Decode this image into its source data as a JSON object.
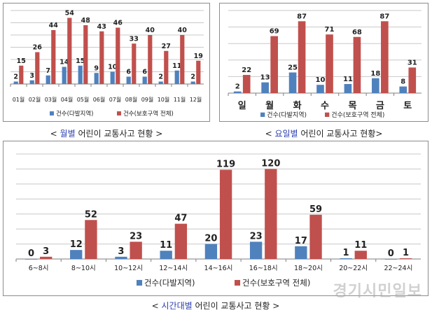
{
  "colors": {
    "blue": "#4f81bd",
    "red": "#c0504d",
    "blue_text": "#2b3fb0"
  },
  "legend": {
    "blue": "건수(다발지역)",
    "red": "건수(보호구역 전체)"
  },
  "captions": {
    "monthly": {
      "pre": "< ",
      "hl": "월별",
      "post": " 어린이 교통사고 현황 >"
    },
    "weekday": {
      "pre": "< ",
      "hl": "요일별",
      "post": " 어린이 교통사고 현황>"
    },
    "hourly": {
      "pre": "< ",
      "hl": "시간대별",
      "post": " 어린이 교통사고 현황 >"
    }
  },
  "watermark": "경기시민일보",
  "chart_data": [
    {
      "id": "monthly",
      "type": "bar",
      "categories": [
        "01월",
        "02월",
        "03월",
        "04월",
        "05월",
        "06월",
        "07월",
        "08월",
        "09월",
        "10월",
        "11월",
        "12월"
      ],
      "series": [
        {
          "name": "건수(다발지역)",
          "values": [
            2,
            3,
            7,
            14,
            15,
            9,
            10,
            6,
            6,
            2,
            11,
            2
          ]
        },
        {
          "name": "건수(보호구역 전체)",
          "values": [
            15,
            26,
            44,
            54,
            48,
            43,
            46,
            33,
            40,
            27,
            40,
            19
          ]
        }
      ],
      "ylim": [
        0,
        60
      ],
      "grid": true,
      "legend_position": "bottom"
    },
    {
      "id": "weekday",
      "type": "bar",
      "categories": [
        "일",
        "월",
        "화",
        "수",
        "목",
        "금",
        "토"
      ],
      "series": [
        {
          "name": "건수(다발지역)",
          "values": [
            2,
            13,
            25,
            10,
            11,
            18,
            8
          ]
        },
        {
          "name": "건수(보호구역 전체)",
          "values": [
            22,
            69,
            87,
            71,
            68,
            87,
            31
          ]
        }
      ],
      "ylim": [
        0,
        100
      ],
      "grid": true,
      "legend_position": "bottom"
    },
    {
      "id": "hourly",
      "type": "bar",
      "categories": [
        "6~8시",
        "8~10시",
        "10~12시",
        "12~14시",
        "14~16시",
        "16~18시",
        "18~20시",
        "20~22시",
        "22~24시"
      ],
      "series": [
        {
          "name": "건수(다발지역)",
          "values": [
            0,
            12,
            3,
            11,
            20,
            23,
            17,
            1,
            0
          ]
        },
        {
          "name": "건수(보호구역 전체)",
          "values": [
            3,
            52,
            23,
            47,
            119,
            120,
            59,
            11,
            1
          ]
        }
      ],
      "ylim": [
        0,
        140
      ],
      "grid": true,
      "legend_position": "bottom"
    }
  ]
}
